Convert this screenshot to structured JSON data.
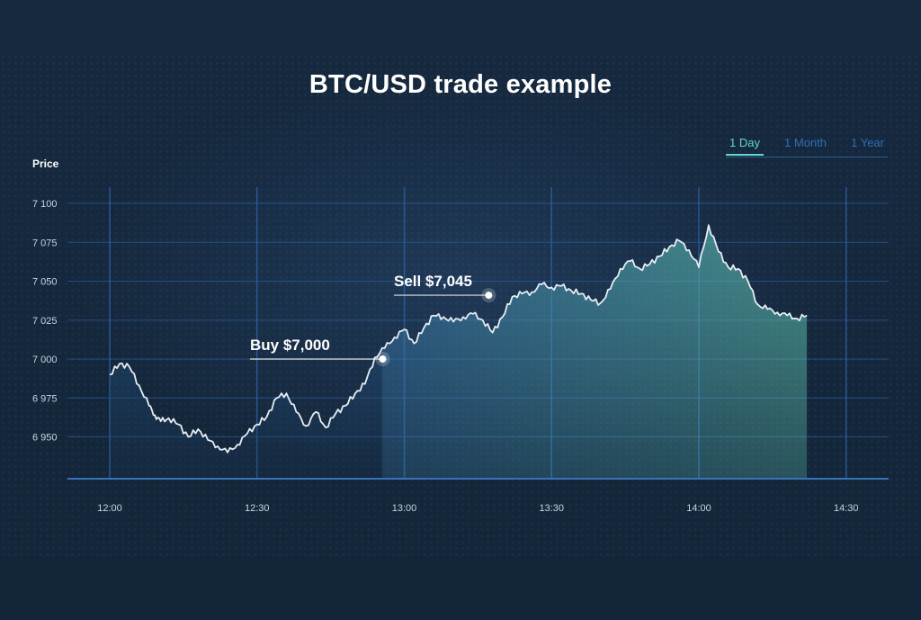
{
  "title": "BTC/USD trade example",
  "tabs": [
    {
      "label": "1 Day",
      "active": true
    },
    {
      "label": "1 Month",
      "active": false
    },
    {
      "label": "1 Year",
      "active": false
    }
  ],
  "colors": {
    "background": "#14263c",
    "grid": "#2a5fa3",
    "line": "#e6ecf3",
    "fill_start": "#3a78a8",
    "fill_end": "#63c9b3",
    "tab_active": "#67d6c4",
    "tab_inactive": "#2f6fb8"
  },
  "chart_data": {
    "type": "area",
    "title": "BTC/USD trade example",
    "ylabel": "Price",
    "xlabel": "",
    "x_tick_labels": [
      "12:00",
      "12:30",
      "13:00",
      "13:30",
      "14:00",
      "14:30"
    ],
    "y_tick_labels": [
      "7 100",
      "7 075",
      "7 050",
      "7 025",
      "7 000",
      "6 975",
      "6 950"
    ],
    "y_ticks": [
      7100,
      7075,
      7050,
      7025,
      7000,
      6975,
      6950
    ],
    "xlim_minutes_from_1200": [
      -1.5,
      36.0
    ],
    "ylim": [
      6925,
      7113
    ],
    "grid": true,
    "series": [
      {
        "x_minutes_from_1200": [
          0,
          0.5,
          1,
          1.5,
          2,
          2.3,
          2.6,
          3,
          3.5,
          4,
          4.5,
          5,
          5.5,
          6,
          6.5,
          7,
          7.5,
          8,
          8.5,
          9,
          9.5,
          10,
          10.5,
          11,
          11.5,
          12,
          12.5,
          13,
          13.5,
          14,
          14.5,
          15,
          15.5,
          16,
          16.5,
          17,
          17.5,
          18,
          18.5,
          19,
          19.5,
          20,
          20.5,
          21,
          21.5,
          22,
          22.5,
          23,
          23.5,
          24,
          24.5,
          25,
          25.5,
          26,
          26.5,
          27,
          27.5,
          28,
          28.5,
          29,
          29.5,
          30,
          30.5,
          31,
          31.5,
          32,
          32.5,
          33,
          33.5,
          34,
          34.5,
          35,
          35.5
        ],
        "values": [
          6990,
          6997,
          6995,
          6983,
          6970,
          6964,
          6960,
          6962,
          6958,
          6950,
          6955,
          6948,
          6944,
          6940,
          6945,
          6952,
          6958,
          6963,
          6975,
          6978,
          6966,
          6957,
          6966,
          6956,
          6965,
          6970,
          6978,
          6984,
          7001,
          7007,
          7014,
          7019,
          7010,
          7020,
          7028,
          7027,
          7024,
          7027,
          7029,
          7025,
          7017,
          7027,
          7040,
          7042,
          7043,
          7048,
          7046,
          7047,
          7044,
          7042,
          7038,
          7036,
          7045,
          7058,
          7063,
          7058,
          7061,
          7066,
          7072,
          7076,
          7070,
          7059,
          7086,
          7069,
          7059,
          7058,
          7050,
          7035,
          7032,
          7030,
          7028,
          7026,
          7028
        ]
      }
    ],
    "annotations": [
      {
        "label": "Buy $7,000",
        "x_minutes_from_1200": 13.9,
        "y": 7000
      },
      {
        "label": "Sell $7,045",
        "x_minutes_from_1200": 19.3,
        "y": 7041
      }
    ]
  }
}
